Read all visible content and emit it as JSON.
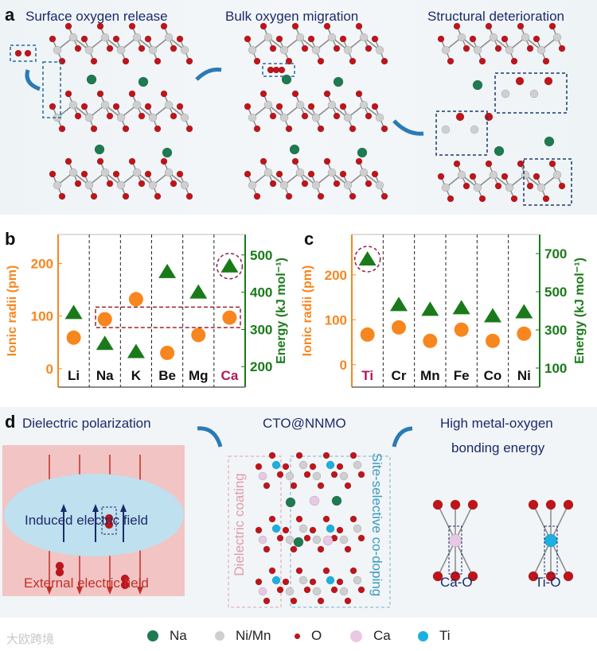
{
  "panel_a": {
    "label": "a",
    "titles": [
      "Surface oxygen release",
      "Bulk oxygen migration",
      "Structural deterioration"
    ]
  },
  "chart_data": [
    {
      "panel": "b",
      "type": "scatter",
      "categories": [
        "Li",
        "Na",
        "K",
        "Be",
        "Mg",
        "Ca"
      ],
      "highlight_category": "Ca",
      "ylabel_left": "Ionic radii (pm)",
      "ylabel_right": "Energy (kJ mol⁻¹)",
      "yticks_left": [
        "0",
        "100",
        "200"
      ],
      "yticks_right": [
        "200",
        "300",
        "400",
        "500"
      ],
      "ylim_left": [
        -35,
        255
      ],
      "ylim_right": [
        145,
        555
      ],
      "series": [
        {
          "name": "Ionic radii",
          "axis": "left",
          "marker": "circle",
          "color": "#f7861e",
          "values": [
            59,
            94,
            132,
            30,
            64,
            97
          ]
        },
        {
          "name": "Energy",
          "axis": "right",
          "marker": "triangle",
          "color": "#1a7a1a",
          "values": [
            345,
            262,
            240,
            455,
            400,
            470
          ]
        }
      ],
      "annotations": [
        "dashed box around Na and Ca radii",
        "dashed circle around Ca energy"
      ]
    },
    {
      "panel": "c",
      "type": "scatter",
      "categories": [
        "Ti",
        "Cr",
        "Mn",
        "Fe",
        "Co",
        "Ni"
      ],
      "highlight_category": "Ti",
      "ylabel_left": "Ionic radii (pm)",
      "ylabel_right": "Energy (kJ mol⁻¹)",
      "yticks_left": [
        "0",
        "100",
        "200"
      ],
      "yticks_right": [
        "100",
        "300",
        "500",
        "700"
      ],
      "ylim_left": [
        -50,
        290
      ],
      "ylim_right": [
        0,
        800
      ],
      "series": [
        {
          "name": "Ionic radii",
          "axis": "left",
          "marker": "circle",
          "color": "#f7861e",
          "values": [
            67,
            83,
            53,
            78,
            53,
            69
          ]
        },
        {
          "name": "Energy",
          "axis": "right",
          "marker": "triangle",
          "color": "#1a7a1a",
          "values": [
            671,
            432,
            407,
            415,
            373,
            394
          ]
        }
      ],
      "annotations": [
        "dashed circle around Ti energy"
      ]
    }
  ],
  "panel_d": {
    "label": "d",
    "left_title": "Dielectric polarization",
    "induced": "Induced electric field",
    "external": "External electric field",
    "center_title": "CTO@NNMO",
    "coating": "Dielectric coating",
    "doping": "Site-selective co-doping",
    "right_title_1": "High metal-oxygen",
    "right_title_2": "bonding energy",
    "bond_ca": "Ca-O",
    "bond_ti": "Ti-O"
  },
  "legend": [
    {
      "label": "Na",
      "color": "#1e7a50"
    },
    {
      "label": "Ni/Mn",
      "color": "#cfcfcf"
    },
    {
      "label": "O",
      "color": "#c0141a"
    },
    {
      "label": "Ca",
      "color": "#e8c8e4"
    },
    {
      "label": "Ti",
      "color": "#1ab0e0"
    }
  ],
  "watermark": "大欧跨境",
  "colors": {
    "title": "#1c2a6b",
    "arrow": "#2a7ab5",
    "highlight": "#b0185a",
    "radii": "#f7861e",
    "energy": "#1a7a1a"
  }
}
